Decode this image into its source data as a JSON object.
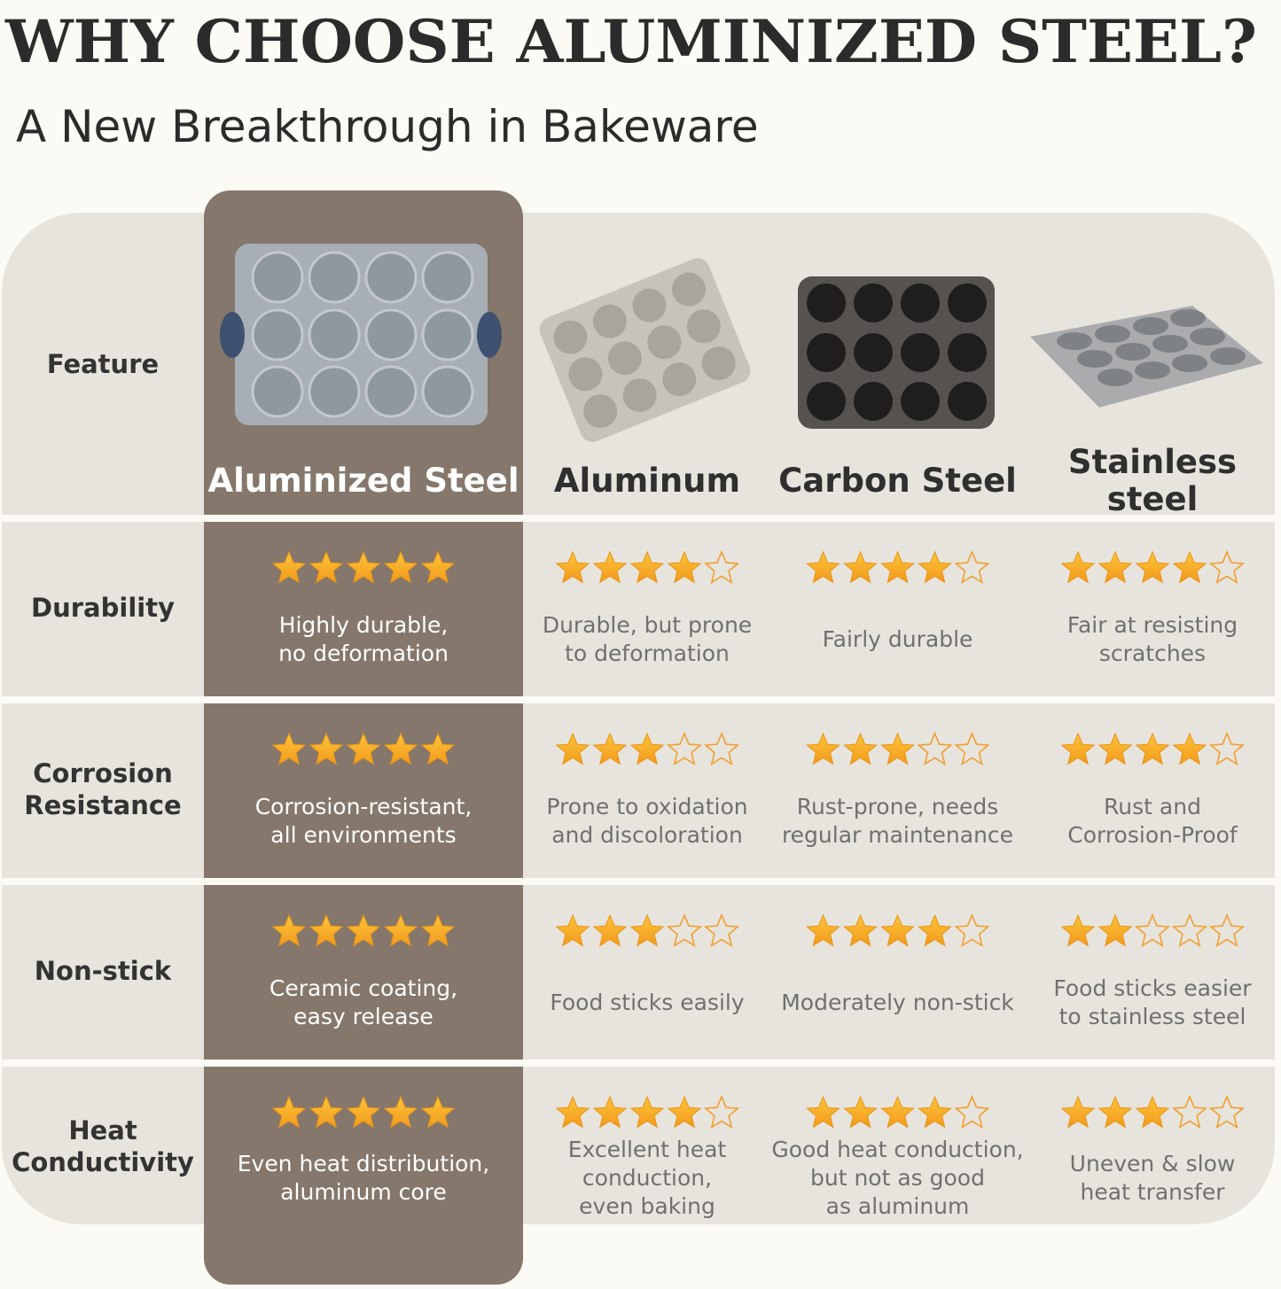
{
  "header": {
    "title": "WHY CHOOSE ALUMINIZED STEEL?",
    "subtitle": "A New Breakthrough in Bakeware"
  },
  "table": {
    "corner": "Feature",
    "star_scale": 5,
    "columns": [
      [
        "Aluminized Steel"
      ],
      [
        "Aluminum"
      ],
      [
        "Carbon Steel"
      ],
      [
        "Stainless",
        "steel"
      ]
    ],
    "rows": [
      {
        "feature": [
          "Durability"
        ],
        "cells": [
          {
            "stars": 5,
            "text": [
              "Highly durable,",
              "no deformation"
            ]
          },
          {
            "stars": 4,
            "text": [
              "Durable, but prone",
              "to deformation"
            ]
          },
          {
            "stars": 4,
            "text": [
              "Fairly durable"
            ]
          },
          {
            "stars": 4,
            "text": [
              "Fair at resisting",
              "scratches"
            ]
          }
        ]
      },
      {
        "feature": [
          "Corrosion",
          "Resistance"
        ],
        "cells": [
          {
            "stars": 5,
            "text": [
              "Corrosion-resistant,",
              "all environments"
            ]
          },
          {
            "stars": 3,
            "text": [
              "Prone to oxidation",
              "and discoloration"
            ]
          },
          {
            "stars": 3,
            "text": [
              "Rust-prone, needs",
              "regular maintenance"
            ]
          },
          {
            "stars": 4,
            "text": [
              "Rust and",
              "Corrosion-Proof"
            ]
          }
        ]
      },
      {
        "feature": [
          "Non-stick"
        ],
        "cells": [
          {
            "stars": 5,
            "text": [
              "Ceramic coating,",
              "easy release"
            ]
          },
          {
            "stars": 3,
            "text": [
              "Food sticks easily"
            ]
          },
          {
            "stars": 4,
            "text": [
              "Moderately non-stick"
            ]
          },
          {
            "stars": 2,
            "text": [
              "Food sticks easier",
              "to stainless steel"
            ]
          }
        ]
      },
      {
        "feature": [
          "Heat",
          "Conductivity"
        ],
        "cells": [
          {
            "stars": 5,
            "text": [
              "Even heat distribution,",
              "aluminum core"
            ]
          },
          {
            "stars": 4,
            "text": [
              "Excellent heat",
              "conduction,",
              "even baking"
            ]
          },
          {
            "stars": 4,
            "text": [
              "Good heat conduction,",
              "but not as good",
              "as aluminum"
            ]
          },
          {
            "stars": 3,
            "text": [
              "Uneven & slow",
              "heat transfer"
            ]
          }
        ]
      }
    ]
  }
}
